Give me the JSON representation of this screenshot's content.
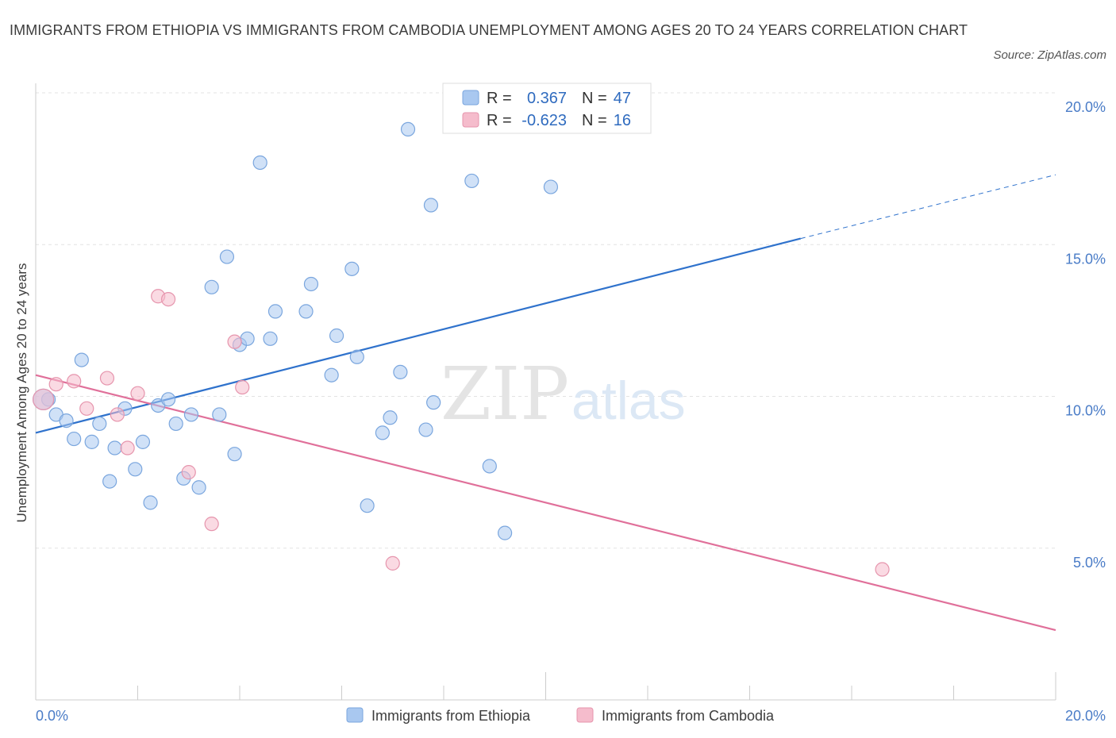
{
  "title": "IMMIGRANTS FROM ETHIOPIA VS IMMIGRANTS FROM CAMBODIA UNEMPLOYMENT AMONG AGES 20 TO 24 YEARS CORRELATION CHART",
  "source": "Source: ZipAtlas.com",
  "watermark": {
    "zip": "ZIP",
    "atlas": "atlas"
  },
  "stats": [
    {
      "r_label": "R =",
      "r_value": "0.367",
      "n_label": "N =",
      "n_value": "47",
      "color": "#a9c8f0"
    },
    {
      "r_label": "R =",
      "r_value": "-0.623",
      "n_label": "N =",
      "n_value": "16",
      "color": "#f5bccc"
    }
  ],
  "chart_data": {
    "type": "scatter",
    "title": "IMMIGRANTS FROM ETHIOPIA VS IMMIGRANTS FROM CAMBODIA UNEMPLOYMENT AMONG AGES 20 TO 24 YEARS CORRELATION CHART",
    "ylabel": "Unemployment Among Ages 20 to 24 years",
    "xlabel": "",
    "xlim": [
      0,
      20
    ],
    "ylim": [
      0,
      20
    ],
    "x_tick_labels": [
      "0.0%",
      "20.0%"
    ],
    "y_tick_labels": [
      "5.0%",
      "10.0%",
      "15.0%",
      "20.0%"
    ],
    "y_ticks": [
      5,
      10,
      15,
      20
    ],
    "grid": true,
    "legend": "bottom",
    "series": [
      {
        "name": "Immigrants from Ethiopia",
        "color": "#a9c8f0",
        "stroke": "#7aa6de",
        "line_color": "#2f72cc",
        "trend": {
          "x": [
            0,
            15
          ],
          "y": [
            8.8,
            15.2
          ],
          "dashed_to": [
            20,
            17.3
          ]
        },
        "points": [
          [
            0.25,
            9.9
          ],
          [
            0.4,
            9.4
          ],
          [
            0.6,
            9.2
          ],
          [
            0.75,
            8.6
          ],
          [
            0.9,
            11.2
          ],
          [
            1.1,
            8.5
          ],
          [
            1.25,
            9.1
          ],
          [
            1.45,
            7.2
          ],
          [
            1.55,
            8.3
          ],
          [
            1.75,
            9.6
          ],
          [
            1.95,
            7.6
          ],
          [
            2.1,
            8.5
          ],
          [
            2.25,
            6.5
          ],
          [
            2.4,
            9.7
          ],
          [
            2.6,
            9.9
          ],
          [
            2.75,
            9.1
          ],
          [
            2.9,
            7.3
          ],
          [
            3.05,
            9.4
          ],
          [
            3.2,
            7.0
          ],
          [
            3.45,
            13.6
          ],
          [
            3.6,
            9.4
          ],
          [
            3.75,
            14.6
          ],
          [
            3.9,
            8.1
          ],
          [
            4.0,
            11.7
          ],
          [
            4.15,
            11.9
          ],
          [
            4.4,
            17.7
          ],
          [
            4.6,
            11.9
          ],
          [
            4.7,
            12.8
          ],
          [
            5.3,
            12.8
          ],
          [
            5.4,
            13.7
          ],
          [
            5.8,
            10.7
          ],
          [
            5.9,
            12.0
          ],
          [
            6.2,
            14.2
          ],
          [
            6.3,
            11.3
          ],
          [
            6.5,
            6.4
          ],
          [
            6.8,
            8.8
          ],
          [
            6.95,
            9.3
          ],
          [
            7.15,
            10.8
          ],
          [
            7.3,
            18.8
          ],
          [
            7.65,
            8.9
          ],
          [
            7.8,
            9.8
          ],
          [
            7.75,
            16.3
          ],
          [
            8.55,
            17.1
          ],
          [
            8.9,
            7.7
          ],
          [
            9.2,
            5.5
          ],
          [
            10.1,
            16.9
          ],
          [
            0.15,
            9.9
          ]
        ]
      },
      {
        "name": "Immigrants from Cambodia",
        "color": "#f5bccc",
        "stroke": "#e695ad",
        "line_color": "#e0709a",
        "trend": {
          "x": [
            0,
            20
          ],
          "y": [
            10.7,
            2.3
          ]
        },
        "points": [
          [
            0.15,
            9.9
          ],
          [
            0.4,
            10.4
          ],
          [
            0.75,
            10.5
          ],
          [
            1.0,
            9.6
          ],
          [
            1.4,
            10.6
          ],
          [
            1.6,
            9.4
          ],
          [
            1.8,
            8.3
          ],
          [
            2.0,
            10.1
          ],
          [
            2.4,
            13.3
          ],
          [
            2.6,
            13.2
          ],
          [
            3.0,
            7.5
          ],
          [
            3.45,
            5.8
          ],
          [
            3.9,
            11.8
          ],
          [
            4.05,
            10.3
          ],
          [
            7.0,
            4.5
          ],
          [
            16.6,
            4.3
          ]
        ]
      }
    ]
  }
}
